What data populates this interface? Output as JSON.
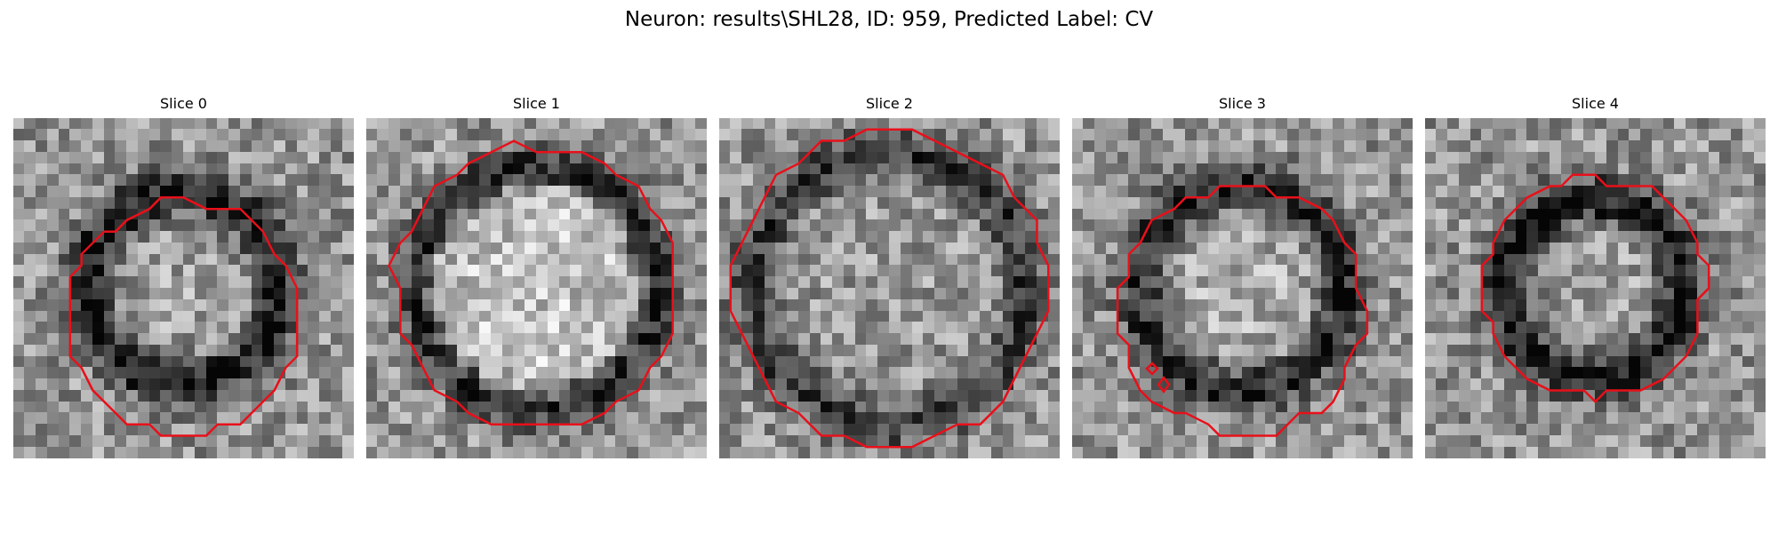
{
  "figure": {
    "title": "Neuron: results\\SHL28, ID: 959, Predicted Label: CV"
  },
  "contour_color": "#e8101a",
  "slices": [
    {
      "label": "Slice 0",
      "seed": 11,
      "ring_radius": 0.28,
      "ring_width": 0.07,
      "ring_darkness": 0.22,
      "center_brightness": 0.05,
      "contour_radius": 0.5
    },
    {
      "label": "Slice 1",
      "seed": 23,
      "ring_radius": 0.36,
      "ring_width": 0.06,
      "ring_darkness": 0.15,
      "center_brightness": 0.18,
      "contour_radius": 0.5
    },
    {
      "label": "Slice 2",
      "seed": 37,
      "ring_radius": 0.4,
      "ring_width": 0.07,
      "ring_darkness": 0.1,
      "center_brightness": 0.02,
      "contour_radius": 0.5
    },
    {
      "label": "Slice 3",
      "seed": 41,
      "ring_radius": 0.3,
      "ring_width": 0.07,
      "ring_darkness": 0.18,
      "center_brightness": 0.08,
      "contour_radius": 0.5
    },
    {
      "label": "Slice 4",
      "seed": 53,
      "ring_radius": 0.26,
      "ring_width": 0.07,
      "ring_darkness": 0.25,
      "center_brightness": 0.04,
      "contour_radius": 0.5
    }
  ]
}
